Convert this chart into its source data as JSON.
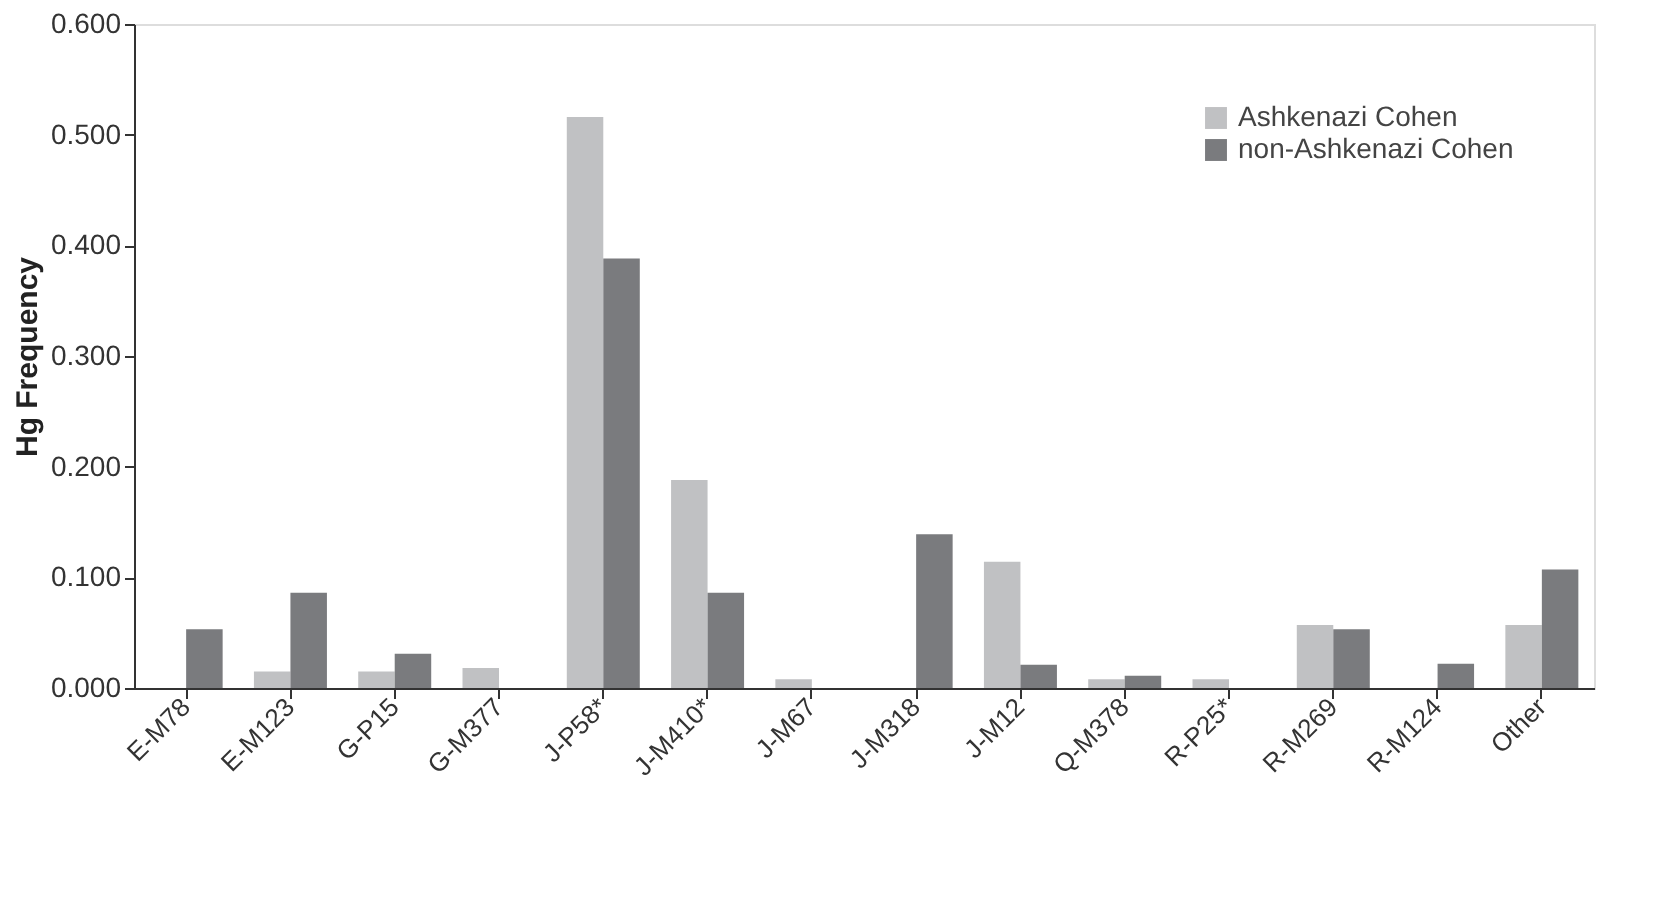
{
  "chart_data": {
    "type": "bar",
    "ylabel": "Hg Frequency",
    "categories": [
      "E-M78",
      "E-M123",
      "G-P15",
      "G-M377",
      "J-P58*",
      "J-M410*",
      "J-M67",
      "J-M318",
      "J-M12",
      "Q-M378",
      "R-P25*",
      "R-M269",
      "R-M124",
      "Other"
    ],
    "series": [
      {
        "name": "Ashkenazi Cohen",
        "color": "#c0c1c3",
        "values": [
          0,
          0.015,
          0.015,
          0.018,
          0.516,
          0.188,
          0.008,
          0,
          0.114,
          0.008,
          0.008,
          0.057,
          0,
          0.057
        ]
      },
      {
        "name": "non-Ashkenazi Cohen",
        "color": "#7a7b7e",
        "values": [
          0.053,
          0.086,
          0.031,
          0,
          0.388,
          0.086,
          0,
          0.139,
          0.021,
          0.011,
          0,
          0.053,
          0.022,
          0.107
        ]
      }
    ],
    "ylim": [
      0,
      0.6
    ],
    "yticks": [
      {
        "value": 0,
        "label": "0.000"
      },
      {
        "value": 0.1,
        "label": "0.100"
      },
      {
        "value": 0.2,
        "label": "0.200"
      },
      {
        "value": 0.3,
        "label": "0.300"
      },
      {
        "value": 0.4,
        "label": "0.400"
      },
      {
        "value": 0.5,
        "label": "0.500"
      },
      {
        "value": 0.6,
        "label": "0.600"
      }
    ],
    "grid": false,
    "legend": "top right"
  }
}
